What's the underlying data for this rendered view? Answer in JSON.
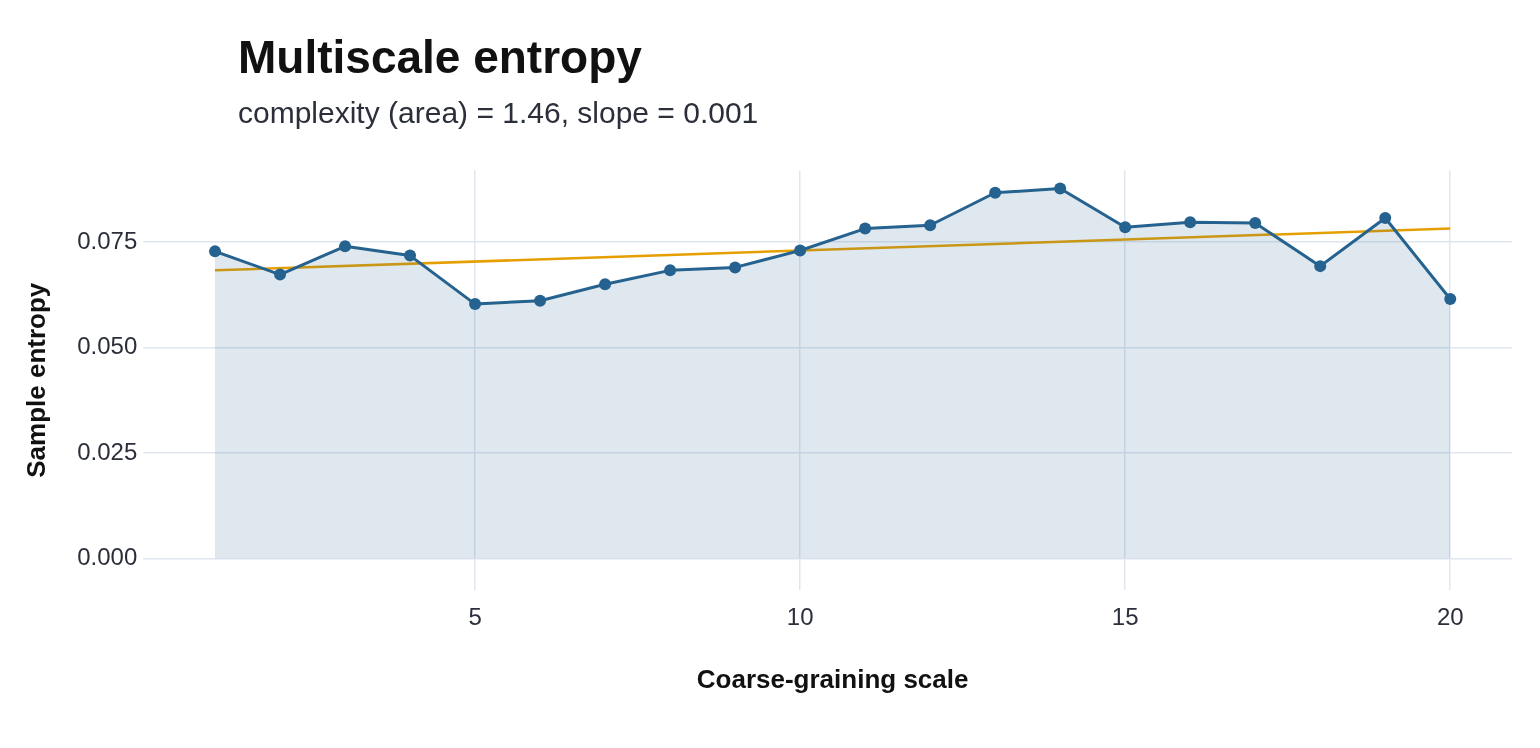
{
  "chart_data": {
    "type": "area",
    "title": "Multiscale entropy",
    "subtitle": "complexity (area) = 1.46, slope = 0.001",
    "xlabel": "Coarse-graining scale",
    "ylabel": "Sample entropy",
    "x": [
      1,
      2,
      3,
      4,
      5,
      6,
      7,
      8,
      9,
      10,
      11,
      12,
      13,
      14,
      15,
      16,
      17,
      18,
      19,
      20
    ],
    "series": [
      {
        "type": "area",
        "color": "#26628f",
        "marker": "circle",
        "values": [
          0.0728,
          0.0673,
          0.074,
          0.0718,
          0.0603,
          0.0611,
          0.065,
          0.0683,
          0.069,
          0.073,
          0.0782,
          0.079,
          0.0867,
          0.0877,
          0.0785,
          0.0797,
          0.0795,
          0.0693,
          0.0807,
          0.0615
        ]
      },
      {
        "type": "line",
        "color": "#e69f00",
        "marker": "none",
        "x": [
          1,
          20
        ],
        "values": [
          0.0683,
          0.0782
        ]
      }
    ],
    "xlim": [
      0.05,
      20.95
    ],
    "xticks": [
      5,
      10,
      15,
      20
    ],
    "ylim": [
      -0.0075,
      0.092
    ],
    "yticks": [
      {
        "value": 0,
        "label": "0.000"
      },
      {
        "value": 0.025,
        "label": "0.025"
      },
      {
        "value": 0.05,
        "label": "0.050"
      },
      {
        "value": 0.075,
        "label": "0.075"
      }
    ],
    "grid": true,
    "legend": false
  }
}
